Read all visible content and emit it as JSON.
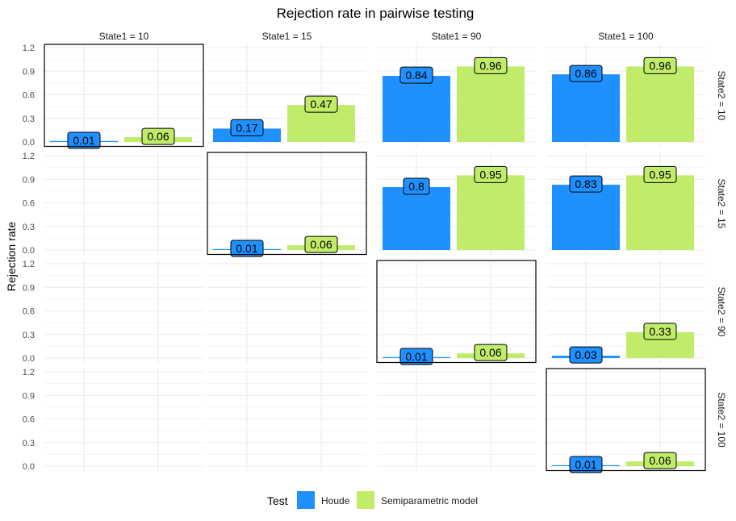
{
  "chart_data": {
    "type": "bar",
    "title": "Rejection rate in pairwise testing",
    "xlabel": "",
    "ylabel": "Rejection rate",
    "ylim": [
      0,
      1.2
    ],
    "y_ticks": [
      "0.0",
      "0.3",
      "0.6",
      "0.9",
      "1.2"
    ],
    "grid": true,
    "col_facet_labels": [
      "State1 = 10",
      "State1 = 15",
      "State1 = 90",
      "State1 = 100"
    ],
    "row_facet_labels": [
      "State2 = 10",
      "State2 = 15",
      "State2 = 90",
      "State2 = 100"
    ],
    "legend": {
      "title": "Test",
      "position": "bottom",
      "items": [
        {
          "name": "Houde",
          "color": "#1E90FF"
        },
        {
          "name": "Semiparametric model",
          "color": "#C0EC6A"
        }
      ]
    },
    "panels": [
      {
        "row": 0,
        "col": 0,
        "highlighted": true,
        "values": [
          0.01,
          0.06
        ],
        "labels": [
          "0.01",
          "0.06"
        ]
      },
      {
        "row": 0,
        "col": 1,
        "highlighted": false,
        "values": [
          0.17,
          0.47
        ],
        "labels": [
          "0.17",
          "0.47"
        ]
      },
      {
        "row": 0,
        "col": 2,
        "highlighted": false,
        "values": [
          0.84,
          0.96
        ],
        "labels": [
          "0.84",
          "0.96"
        ]
      },
      {
        "row": 0,
        "col": 3,
        "highlighted": false,
        "values": [
          0.86,
          0.96
        ],
        "labels": [
          "0.86",
          "0.96"
        ]
      },
      {
        "row": 1,
        "col": 1,
        "highlighted": true,
        "values": [
          0.01,
          0.06
        ],
        "labels": [
          "0.01",
          "0.06"
        ]
      },
      {
        "row": 1,
        "col": 2,
        "highlighted": false,
        "values": [
          0.8,
          0.95
        ],
        "labels": [
          "0.8",
          "0.95"
        ]
      },
      {
        "row": 1,
        "col": 3,
        "highlighted": false,
        "values": [
          0.83,
          0.95
        ],
        "labels": [
          "0.83",
          "0.95"
        ]
      },
      {
        "row": 2,
        "col": 2,
        "highlighted": true,
        "values": [
          0.01,
          0.06
        ],
        "labels": [
          "0.01",
          "0.06"
        ]
      },
      {
        "row": 2,
        "col": 3,
        "highlighted": false,
        "values": [
          0.03,
          0.33
        ],
        "labels": [
          "0.03",
          "0.33"
        ]
      },
      {
        "row": 3,
        "col": 3,
        "highlighted": true,
        "values": [
          0.01,
          0.06
        ],
        "labels": [
          "0.01",
          "0.06"
        ]
      }
    ]
  }
}
